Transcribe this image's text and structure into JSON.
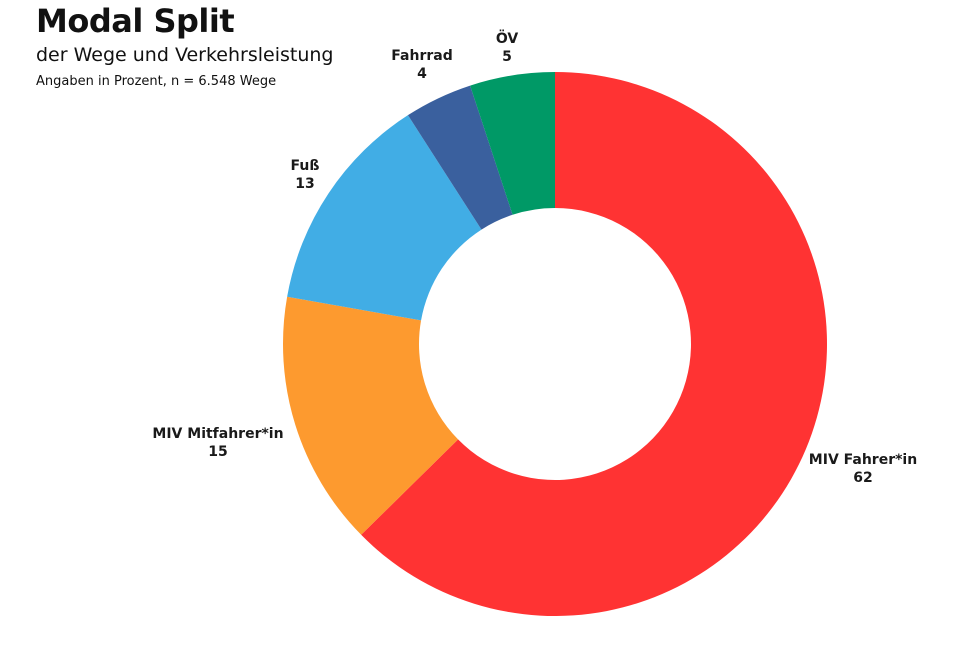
{
  "chart_data": {
    "type": "pie",
    "title": "Modal Split",
    "subtitle": "der Wege und Verkehrsleistung",
    "note": "Angaben in Prozent, n = 6.548 Wege",
    "slices": [
      {
        "label": "MIV Fahrer*in",
        "value": 62,
        "color": "#ff3333"
      },
      {
        "label": "MIV Mitfahrer*in",
        "value": 15,
        "color": "#fd9a2f"
      },
      {
        "label": "Fuß",
        "value": 13,
        "color": "#41ade5"
      },
      {
        "label": "Fahrrad",
        "value": 4,
        "color": "#3a609e"
      },
      {
        "label": "ÖV",
        "value": 5,
        "color": "#009966"
      }
    ]
  }
}
